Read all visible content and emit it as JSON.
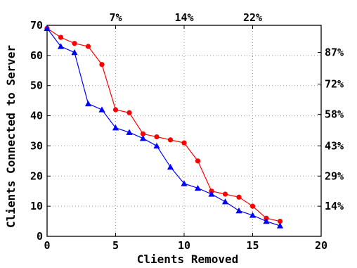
{
  "chart_data": {
    "type": "line",
    "xlabel": "Clients Removed",
    "ylabel": "Clients Connected to Server",
    "xlim": [
      0,
      20
    ],
    "ylim": [
      0,
      70
    ],
    "x_ticks": [
      0,
      5,
      10,
      15,
      20
    ],
    "y_ticks": [
      0,
      10,
      20,
      30,
      40,
      50,
      60,
      70
    ],
    "top_ticks": [
      {
        "x": 5,
        "label": "7%"
      },
      {
        "x": 10,
        "label": "14%"
      },
      {
        "x": 15,
        "label": "22%"
      }
    ],
    "right_ticks": [
      {
        "y": 61,
        "label": "87%"
      },
      {
        "y": 50.5,
        "label": "72%"
      },
      {
        "y": 40.5,
        "label": "58%"
      },
      {
        "y": 30,
        "label": "43%"
      },
      {
        "y": 20,
        "label": "29%"
      },
      {
        "y": 10,
        "label": "14%"
      }
    ],
    "grid": true,
    "series": [
      {
        "color": "#ff0000",
        "marker": "circle",
        "x": [
          0,
          1,
          2,
          3,
          4,
          5,
          6,
          7,
          8,
          9,
          10,
          11,
          12,
          13,
          14,
          15,
          16,
          17
        ],
        "values": [
          69,
          66,
          64,
          63,
          57,
          42,
          41,
          34,
          33,
          32,
          31,
          25,
          15,
          14,
          13,
          10,
          6,
          5
        ]
      },
      {
        "color": "#0000ff",
        "marker": "triangle",
        "x": [
          0,
          1,
          2,
          3,
          4,
          5,
          6,
          7,
          8,
          9,
          10,
          11,
          12,
          13,
          14,
          15,
          16,
          17
        ],
        "values": [
          69,
          63,
          61,
          44,
          42,
          36,
          34.5,
          32.5,
          30,
          23,
          17.5,
          16,
          14,
          11.5,
          8.5,
          7,
          5,
          3.5
        ]
      }
    ]
  }
}
